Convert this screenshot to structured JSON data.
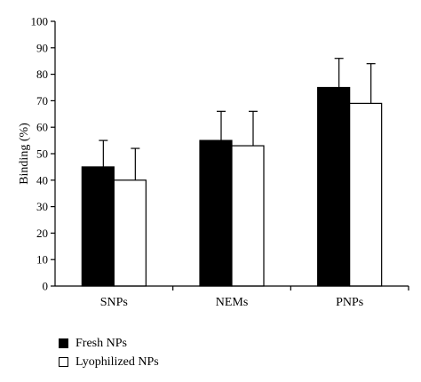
{
  "chart_data": {
    "type": "bar",
    "categories": [
      "SNPs",
      "NEMs",
      "PNPs"
    ],
    "series": [
      {
        "name": "Fresh NPs",
        "values": [
          45,
          55,
          75
        ],
        "errors": [
          10,
          11,
          11
        ],
        "color": "#000000"
      },
      {
        "name": "Lyophilized NPs",
        "values": [
          40,
          53,
          69
        ],
        "errors": [
          12,
          13,
          15
        ],
        "color": "#ffffff"
      }
    ],
    "ylabel": "Binding (%)",
    "xlabel": "",
    "ylim": [
      0,
      100
    ],
    "yticks": [
      0,
      10,
      20,
      30,
      40,
      50,
      60,
      70,
      80,
      90,
      100
    ],
    "grid": false,
    "legend_position": "bottom-left"
  }
}
